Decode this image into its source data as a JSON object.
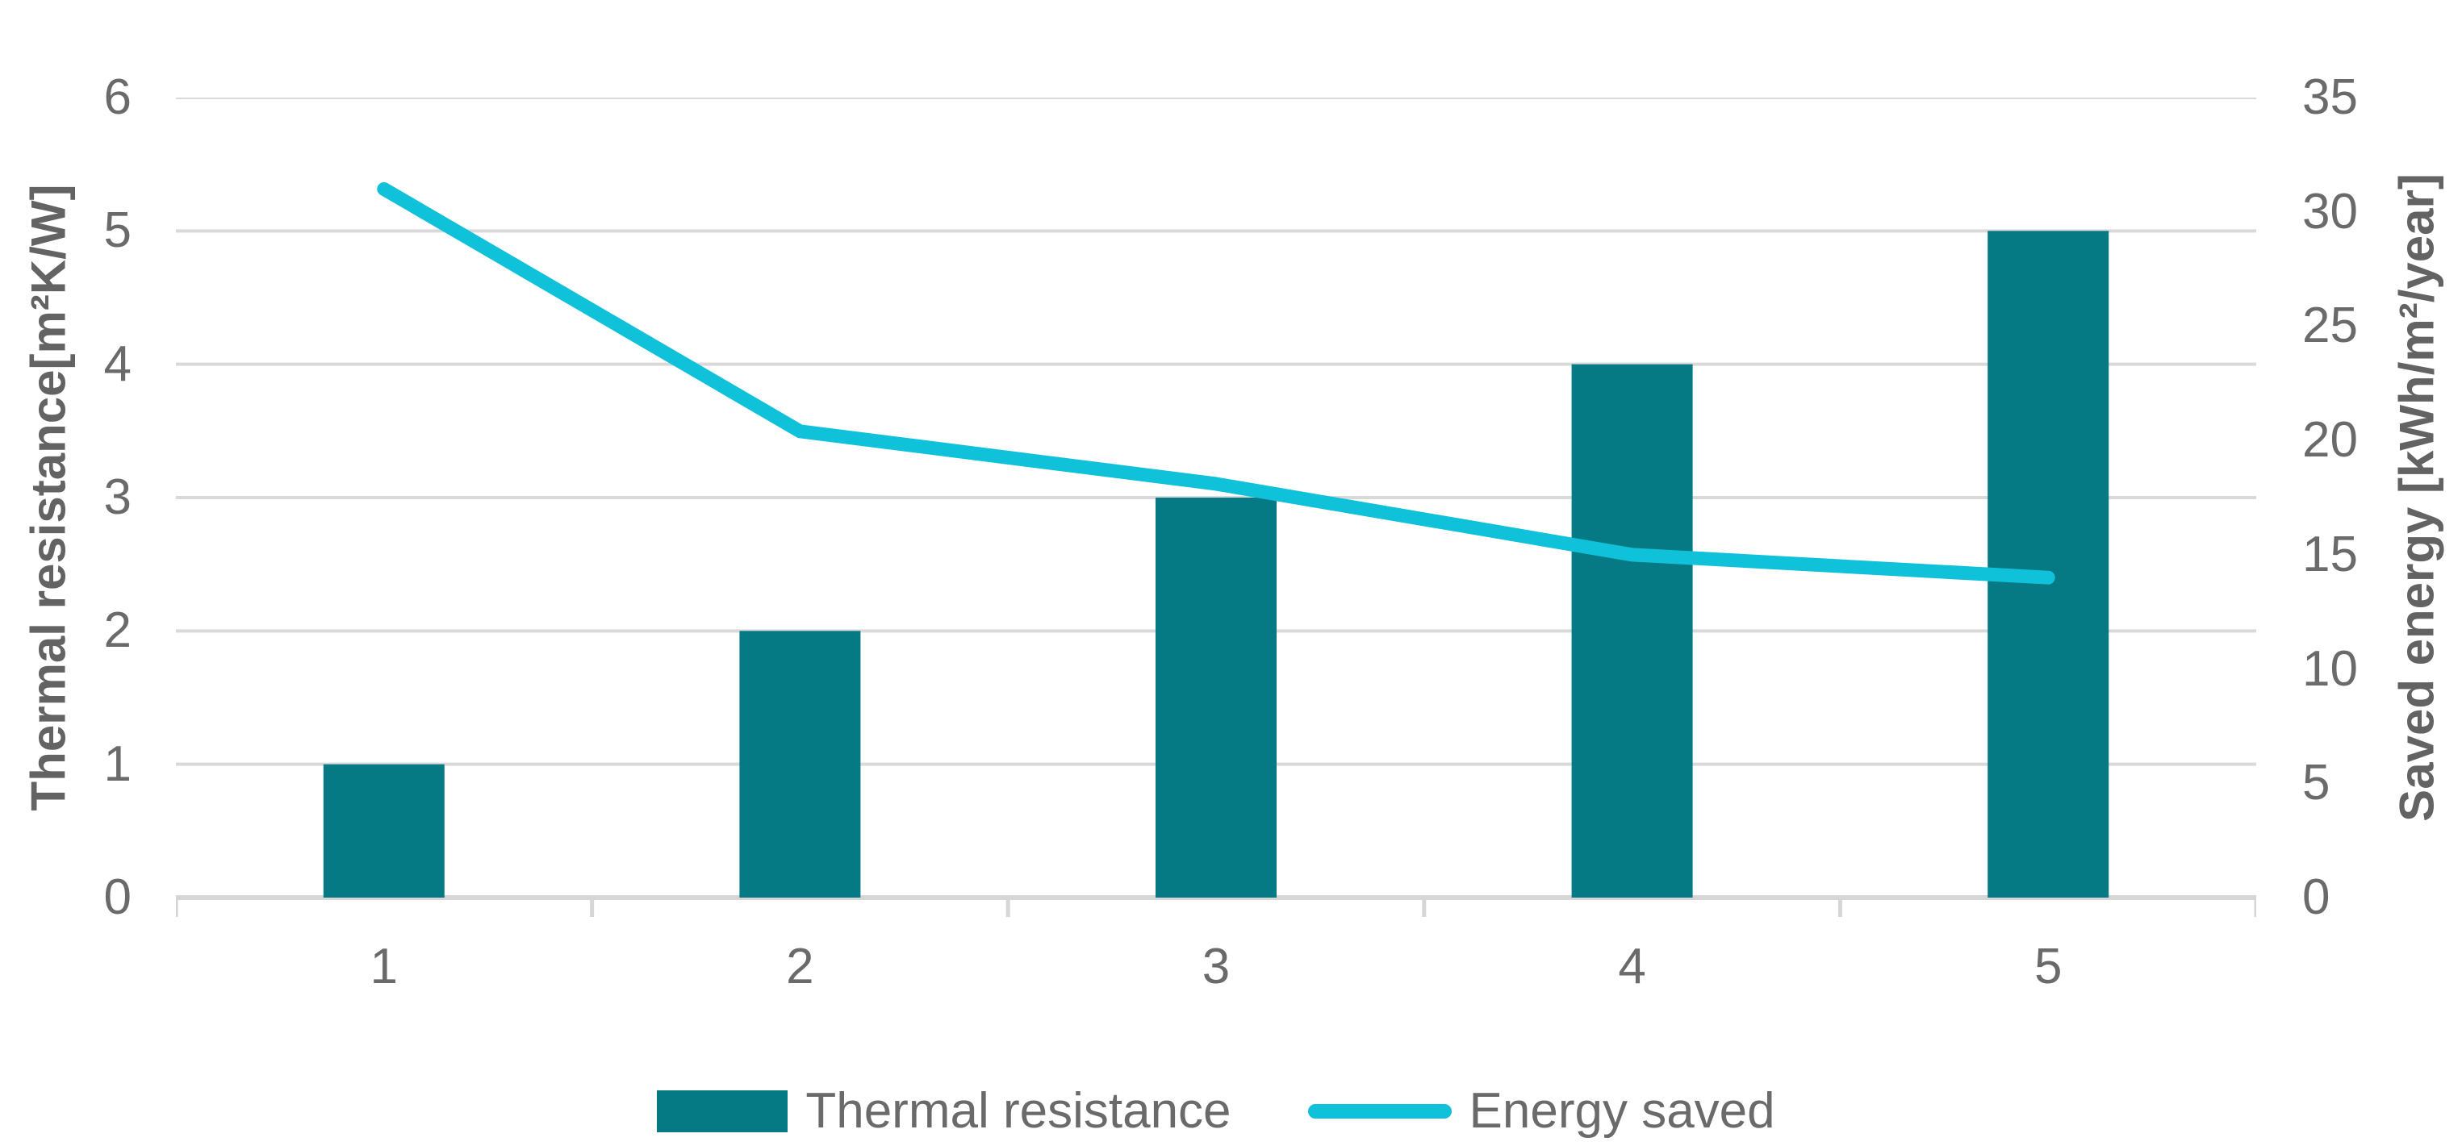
{
  "chart_data": {
    "type": "bar",
    "subtype": "bar-line-combo",
    "categories": [
      "1",
      "2",
      "3",
      "4",
      "5"
    ],
    "series": [
      {
        "name": "Thermal resistance",
        "kind": "bar",
        "axis": "left",
        "values": [
          1,
          2,
          3,
          4,
          5
        ]
      },
      {
        "name": "Energy saved",
        "kind": "line",
        "axis": "right",
        "values": [
          31,
          20.4,
          18.1,
          15,
          14
        ]
      }
    ],
    "title": "",
    "xlabel": "",
    "left_axis": {
      "title": "Thermal resistance[m²K/W]",
      "min": 0,
      "max": 6,
      "step": 1,
      "ticks": [
        0,
        1,
        2,
        3,
        4,
        5,
        6
      ]
    },
    "right_axis": {
      "title": "Saved energy [kWh/m²/year]",
      "min": 0,
      "max": 35,
      "step": 5,
      "ticks": [
        0,
        5,
        10,
        15,
        20,
        25,
        30,
        35
      ]
    },
    "grid": true,
    "legend_position": "bottom"
  },
  "legend": {
    "items": [
      {
        "label": "Thermal resistance",
        "marker": "bar-swatch"
      },
      {
        "label": "Energy saved",
        "marker": "line-swatch"
      }
    ]
  },
  "colors": {
    "bar": "#057a85",
    "line": "#10c1da",
    "grid": "#d9d9d9",
    "axis_line": "#d6d6d6",
    "tick_text": "#6a6a6a",
    "axis_title_text": "#636363",
    "background": "#ffffff"
  }
}
